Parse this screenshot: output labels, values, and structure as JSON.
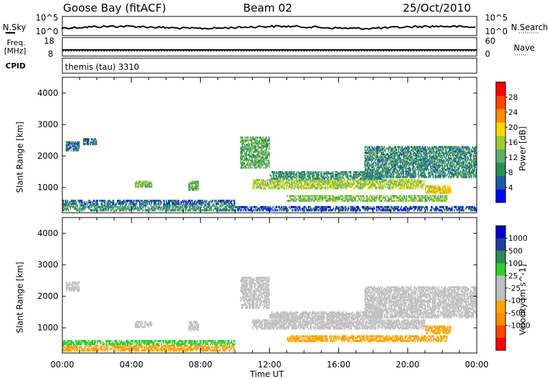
{
  "header": {
    "title": "Goose Bay (fitACF)",
    "beam": "Beam 02",
    "date": "25/Oct/2010"
  },
  "noise_panel": {
    "left_label": "N.Sky",
    "left_ticks": [
      "10^5",
      "10^0"
    ],
    "right_ticks": [
      "10^5",
      "10^0"
    ],
    "right_label": "N.Search"
  },
  "freq_panel": {
    "left_label_1": "Freq.",
    "left_label_2": "[MHz]",
    "left_ticks": [
      "18",
      "8"
    ],
    "right_ticks": [
      "60",
      "0"
    ],
    "right_label": "Nave"
  },
  "cpid_panel": {
    "label": "CPID",
    "text": "themis (tau) 3310"
  },
  "colors": {
    "power_scale": [
      "#0000ff",
      "#1f5aa8",
      "#2e8b57",
      "#5fae6e",
      "#9acd32",
      "#ffd700",
      "#ff8c00",
      "#ff4500",
      "#ff0000"
    ],
    "velocity_scale": [
      "#ff0000",
      "#ff4500",
      "#ff8c00",
      "#ffa500",
      "#c0c0c0",
      "#c0c0c0",
      "#32cd32",
      "#2e8b57",
      "#1f3fa0",
      "#0000cd"
    ]
  },
  "chart_data": [
    {
      "type": "heatmap",
      "name": "power",
      "ylabel": "Slant Range [km]",
      "yticks": [
        "1000",
        "2000",
        "3000",
        "4000"
      ],
      "ylim": [
        200,
        4500
      ],
      "xlim": [
        0,
        24
      ],
      "colorbar_label": "Power [dB]",
      "colorbar_ticks": [
        "4",
        "8",
        "12",
        "16",
        "20",
        "24",
        "28"
      ],
      "colorbar_range": [
        0,
        32
      ],
      "regions": [
        {
          "t0": 0.0,
          "t1": 10.0,
          "r0": 250,
          "r1": 450,
          "v": 10
        },
        {
          "t0": 0.0,
          "t1": 10.0,
          "r0": 450,
          "r1": 600,
          "v": 6
        },
        {
          "t0": 0.2,
          "t1": 1.0,
          "r0": 2150,
          "r1": 2450,
          "v": 7
        },
        {
          "t0": 1.2,
          "t1": 2.0,
          "r0": 2350,
          "r1": 2550,
          "v": 6
        },
        {
          "t0": 4.2,
          "t1": 5.2,
          "r0": 1000,
          "r1": 1200,
          "v": 14
        },
        {
          "t0": 7.3,
          "t1": 7.9,
          "r0": 900,
          "r1": 1200,
          "v": 12
        },
        {
          "t0": 10.3,
          "t1": 12.0,
          "r0": 1600,
          "r1": 2600,
          "v": 12
        },
        {
          "t0": 11.0,
          "t1": 21.0,
          "r0": 950,
          "r1": 1250,
          "v": 16
        },
        {
          "t0": 12.0,
          "t1": 18.5,
          "r0": 1250,
          "r1": 1500,
          "v": 10
        },
        {
          "t0": 13.0,
          "t1": 22.3,
          "r0": 550,
          "r1": 750,
          "v": 14
        },
        {
          "t0": 17.5,
          "t1": 24.0,
          "r0": 1300,
          "r1": 2300,
          "v": 9
        },
        {
          "t0": 21.0,
          "t1": 22.5,
          "r0": 800,
          "r1": 1050,
          "v": 20
        },
        {
          "t0": 10.0,
          "t1": 24.0,
          "r0": 250,
          "r1": 400,
          "v": 5
        }
      ]
    },
    {
      "type": "heatmap",
      "name": "velocity",
      "ylabel": "Slant Range [km]",
      "yticks": [
        "1000",
        "2000",
        "3000",
        "4000"
      ],
      "ylim": [
        200,
        4500
      ],
      "xlim": [
        0,
        24
      ],
      "xlabel": "Time UT",
      "xticks": [
        "00:00",
        "04:00",
        "08:00",
        "12:00",
        "16:00",
        "20:00",
        "00:00"
      ],
      "colorbar_label": "Velocity [m s^-1]",
      "colorbar_ticks": [
        "1000",
        "500",
        "100",
        "25",
        "-25",
        "-100",
        "-500",
        "-1000"
      ],
      "regions": [
        {
          "t0": 0.0,
          "t1": 10.0,
          "r0": 250,
          "r1": 450,
          "v": -80
        },
        {
          "t0": 0.0,
          "t1": 10.0,
          "r0": 450,
          "r1": 600,
          "v": 40
        },
        {
          "t0": 0.2,
          "t1": 1.0,
          "r0": 2150,
          "r1": 2450,
          "v": 0
        },
        {
          "t0": 4.2,
          "t1": 5.2,
          "r0": 1000,
          "r1": 1200,
          "v": 0
        },
        {
          "t0": 7.3,
          "t1": 7.9,
          "r0": 900,
          "r1": 1200,
          "v": 0
        },
        {
          "t0": 10.3,
          "t1": 12.0,
          "r0": 1600,
          "r1": 2600,
          "v": 0
        },
        {
          "t0": 11.0,
          "t1": 21.0,
          "r0": 950,
          "r1": 1250,
          "v": 0
        },
        {
          "t0": 12.0,
          "t1": 18.5,
          "r0": 1250,
          "r1": 1500,
          "v": 0
        },
        {
          "t0": 13.0,
          "t1": 22.3,
          "r0": 550,
          "r1": 750,
          "v": -60
        },
        {
          "t0": 17.5,
          "t1": 24.0,
          "r0": 1300,
          "r1": 2300,
          "v": 0
        },
        {
          "t0": 21.0,
          "t1": 22.5,
          "r0": 800,
          "r1": 1050,
          "v": -30
        }
      ]
    }
  ]
}
